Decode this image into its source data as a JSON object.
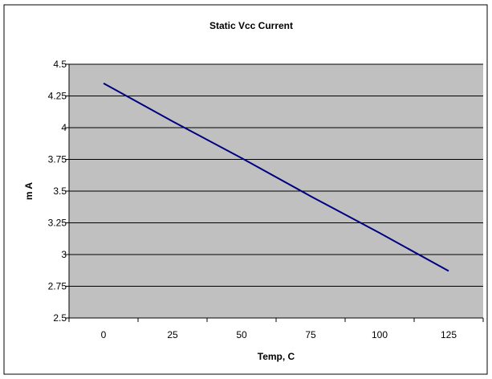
{
  "chart_data": {
    "type": "line",
    "title": "Static Vcc Current",
    "xlabel": "Temp, C",
    "ylabel": "m A",
    "x": [
      0,
      25,
      50,
      75,
      100,
      125
    ],
    "y_tick_labels": [
      "2.5",
      "2.75",
      "3",
      "3.25",
      "3.5",
      "3.75",
      "4",
      "4.25",
      "4.5"
    ],
    "series": [
      {
        "values": [
          4.35,
          4.05,
          3.76,
          3.46,
          3.17,
          2.87
        ],
        "color": "#000080"
      }
    ],
    "xlim": [
      -12.5,
      137.5
    ],
    "ylim": [
      2.5,
      4.5
    ],
    "grid": "horizontal",
    "legend": "none",
    "plot_background": "#c0c0c0",
    "chart_border_color": "#000000"
  }
}
